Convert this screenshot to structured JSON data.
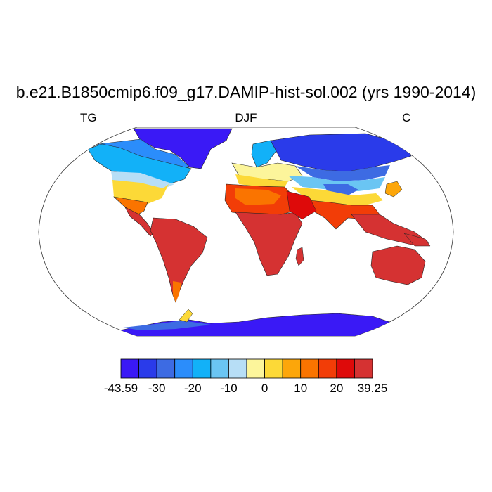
{
  "title": "b.e21.B1850cmip6.f09_g17.DAMIP-hist-sol.002 (yrs 1990-2014)",
  "subtitle_left": "TG",
  "subtitle_center": "DJF",
  "subtitle_right": "C",
  "colorbar": {
    "colors": [
      "#3a19f6",
      "#2a3bea",
      "#3d6be3",
      "#2b8dfb",
      "#12b1f8",
      "#6ac5f3",
      "#b7def6",
      "#fcf59b",
      "#fcd937",
      "#fca60a",
      "#fa7400",
      "#f23d07",
      "#de0a0a",
      "#d53232"
    ],
    "labels": [
      "-43.59",
      "-30",
      "-20",
      "-10",
      "0",
      "10",
      "20",
      "39.25"
    ]
  },
  "map": {
    "projection": "robinson",
    "field": "TG",
    "season": "DJF",
    "units": "C"
  }
}
